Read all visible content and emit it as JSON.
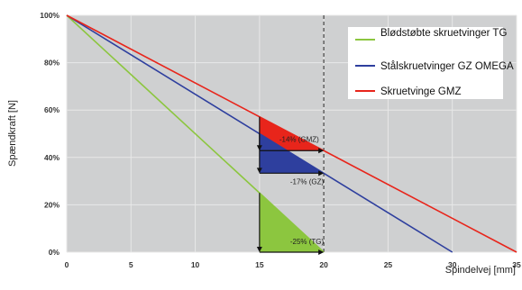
{
  "chart_data": {
    "type": "line",
    "xlabel": "Spindelvej [mm]",
    "ylabel": "Spændkraft [N]",
    "xlim": [
      0,
      35
    ],
    "ylim": [
      0,
      100
    ],
    "x_ticks": [
      "0",
      "5",
      "10",
      "15",
      "20",
      "25",
      "30",
      "35"
    ],
    "y_ticks": [
      "0%",
      "20%",
      "40%",
      "60%",
      "80%",
      "100%"
    ],
    "grid": true,
    "legend_position": "top-right",
    "colors": {
      "plot_background": "#cfd0d1",
      "grid": "#e8e8e8",
      "vertical_marker": "#444444"
    },
    "series": [
      {
        "name": "Blødstøbte skruetvinger TG",
        "color": "#8cc63f",
        "x": [
          0,
          20
        ],
        "y": [
          100,
          0
        ]
      },
      {
        "name": "Stålskruetvinger GZ OMEGA",
        "color": "#2e3f9e",
        "x": [
          0,
          30
        ],
        "y": [
          100,
          0
        ]
      },
      {
        "name": "Skruetvinge GMZ",
        "color": "#e8251b",
        "x": [
          0,
          35
        ],
        "y": [
          100,
          0
        ]
      }
    ],
    "vertical_marker_x": 20,
    "annotations": [
      {
        "label": "-14% (GMZ)",
        "series": 2,
        "x_from": 15,
        "x_to": 20
      },
      {
        "label": "-17% (GZ)",
        "series": 1,
        "x_from": 15,
        "x_to": 20
      },
      {
        "label": "-25% (TG)",
        "series": 0,
        "x_from": 15,
        "x_to": 20
      }
    ]
  }
}
